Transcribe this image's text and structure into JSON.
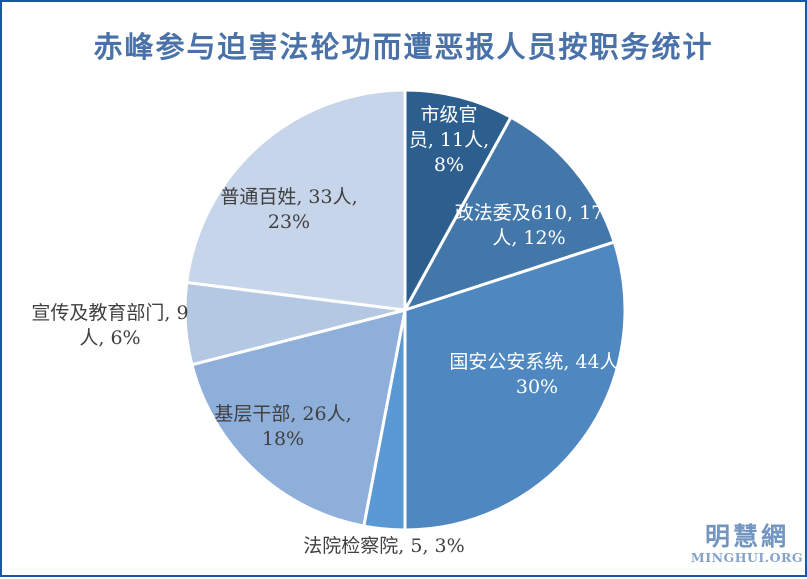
{
  "title": "赤峰参与迫害法轮功而遭恶报人员按职务统计",
  "colors": {
    "border": "#1A57A5",
    "title_text": "#4A72A8",
    "watermark": "#7396C0",
    "label_dark": "#404040",
    "label_light": "#FFFFFF"
  },
  "chart_data": {
    "type": "pie",
    "title": "赤峰参与迫害法轮功而遭恶报人员按职务统计",
    "unit": "人",
    "total": 145,
    "start_angle_deg": 0,
    "direction": "clockwise",
    "legend": "none",
    "label_format": "category, value, percent",
    "slices": [
      {
        "key": "municipal-officials",
        "label": "市级官员",
        "value": 11,
        "pct": 8,
        "color": "#2D5F8E",
        "label_full": "市级官员, 11人, 8%",
        "label_lines": [
          "市级官",
          "员, 11人,",
          "8%"
        ],
        "label_color": "#FFFFFF"
      },
      {
        "key": "plac-610",
        "label": "政法委及610",
        "value": 17,
        "pct": 12,
        "color": "#4377AA",
        "label_full": "政法委及610, 17人, 12%",
        "label_lines": [
          "政法委及610, 17",
          "人, 12%"
        ],
        "label_color": "#FFFFFF"
      },
      {
        "key": "security-police",
        "label": "国安公安系统",
        "value": 44,
        "pct": 30,
        "color": "#4F88C0",
        "label_full": "国安公安系统, 44人, 30%",
        "label_lines": [
          "国安公安系统, 44人,",
          "30%"
        ],
        "label_color": "#FFFFFF"
      },
      {
        "key": "courts-procuratorate",
        "label": "法院检察院",
        "value": 5,
        "pct": 3,
        "color": "#5B99D5",
        "label_full": "法院检察院, 5, 3%",
        "label_lines": [
          "法院检察院, 5, 3%"
        ],
        "label_color": "#404040"
      },
      {
        "key": "grassroots-cadres",
        "label": "基层干部",
        "value": 26,
        "pct": 18,
        "color": "#8FAFDB",
        "label_full": "基层干部, 26人, 18%",
        "label_lines": [
          "基层干部, 26人,",
          "18%"
        ],
        "label_color": "#404040"
      },
      {
        "key": "propaganda-education",
        "label": "宣传及教育部门",
        "value": 9,
        "pct": 6,
        "color": "#B4C7E3",
        "label_full": "宣传及教育部门, 9人, 6%",
        "label_lines": [
          "宣传及教育部门, 9",
          "人, 6%"
        ],
        "label_color": "#404040"
      },
      {
        "key": "ordinary-people",
        "label": "普通百姓",
        "value": 33,
        "pct": 23,
        "color": "#C6D5EA",
        "label_full": "普通百姓, 33人, 23%",
        "label_lines": [
          "普通百姓, 33人,",
          "23%"
        ],
        "label_color": "#404040"
      }
    ]
  },
  "watermark": {
    "cn": "明慧網",
    "en": "MINGHUI.ORG"
  }
}
